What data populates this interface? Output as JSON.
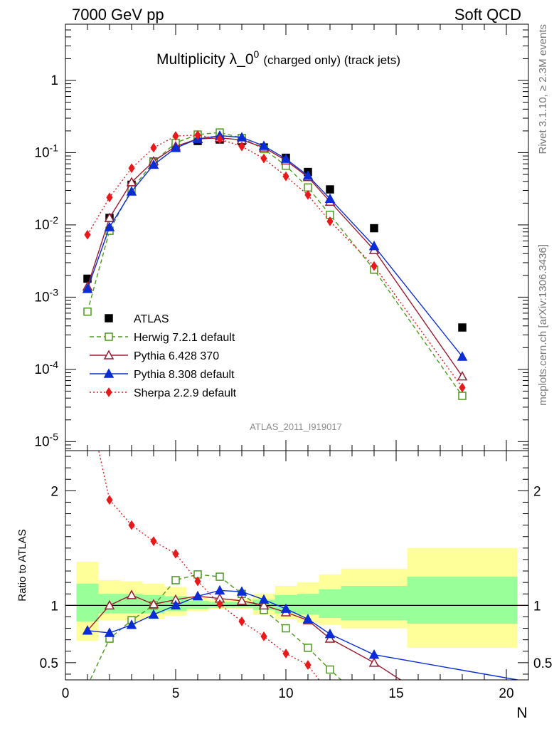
{
  "header": {
    "left": "7000 GeV pp",
    "right": "Soft QCD"
  },
  "side_labels": {
    "top": "Rivet 3.1.10, ≥ 2.3M events",
    "bottom": "mcplots.cern.ch [arXiv:1306.3436]"
  },
  "chart_data": [
    {
      "type": "scatter",
      "title": "Multiplicity λ_0^0 (charged only) (track jets)",
      "title_main": "Multiplicity λ_0",
      "title_sup": "0",
      "title_sub": "(charged only) (track jets)",
      "watermark": "ATLAS_2011_I919017",
      "xlim": [
        0,
        21
      ],
      "ylim": [
        7.5e-06,
        6
      ],
      "yscale": "log",
      "y_ticks": [
        "10^-5",
        "10^-4",
        "10^-3",
        "10^-2",
        "10^-1",
        "1"
      ],
      "legend_position": "lower-left",
      "series": [
        {
          "name": "ATLAS",
          "color": "#000000",
          "marker": "square-filled",
          "line": "none",
          "x": [
            1,
            2,
            3,
            4,
            5,
            6,
            7,
            8,
            9,
            10,
            11,
            12,
            14,
            18
          ],
          "y": [
            0.0018,
            0.0125,
            0.036,
            0.075,
            0.117,
            0.145,
            0.152,
            0.145,
            0.118,
            0.085,
            0.054,
            0.031,
            0.009,
            0.00038
          ]
        },
        {
          "name": "Herwig 7.2.1 default",
          "color": "#4d9a1f",
          "marker": "square-open",
          "line": "dashed",
          "x": [
            1,
            2,
            3,
            4,
            5,
            6,
            7,
            8,
            9,
            10,
            11,
            12,
            14,
            18
          ],
          "y": [
            0.00063,
            0.0083,
            0.031,
            0.074,
            0.137,
            0.178,
            0.19,
            0.16,
            0.112,
            0.066,
            0.033,
            0.0138,
            0.0024,
            4.3e-05
          ]
        },
        {
          "name": "Pythia 6.428 370",
          "color": "#9b1b30",
          "marker": "triangle-open",
          "line": "solid",
          "x": [
            1,
            2,
            3,
            4,
            5,
            6,
            7,
            8,
            9,
            10,
            11,
            12,
            14,
            18
          ],
          "y": [
            0.0014,
            0.0125,
            0.039,
            0.076,
            0.122,
            0.155,
            0.16,
            0.15,
            0.118,
            0.078,
            0.046,
            0.021,
            0.0045,
            8e-05
          ]
        },
        {
          "name": "Pythia 8.308 default",
          "color": "#0a2cd6",
          "marker": "triangle-filled",
          "line": "solid",
          "x": [
            1,
            2,
            3,
            4,
            5,
            6,
            7,
            8,
            9,
            10,
            11,
            12,
            14,
            18
          ],
          "y": [
            0.0013,
            0.0093,
            0.029,
            0.068,
            0.116,
            0.155,
            0.172,
            0.163,
            0.124,
            0.082,
            0.048,
            0.023,
            0.0051,
            0.00015
          ]
        },
        {
          "name": "Sherpa 2.2.9 default",
          "color": "#e8191b",
          "marker": "diamond-filled",
          "line": "dotted",
          "x": [
            1,
            2,
            3,
            4,
            5,
            6,
            7,
            8,
            9,
            10,
            11,
            12,
            14,
            18
          ],
          "y": [
            0.0073,
            0.024,
            0.061,
            0.117,
            0.17,
            0.175,
            0.154,
            0.122,
            0.083,
            0.047,
            0.026,
            0.0112,
            0.0027,
            5.6e-05
          ]
        }
      ]
    },
    {
      "type": "line",
      "ylabel": "Ratio to ATLAS",
      "xlabel": "N",
      "xlim": [
        0,
        21
      ],
      "ylim": [
        0.35,
        2.35
      ],
      "x_ticks": [
        "0",
        "5",
        "10",
        "15",
        "20"
      ],
      "y_ticks": [
        "0.5",
        "1",
        "2"
      ],
      "reference_line": 1,
      "bands": {
        "x_edges": [
          0.5,
          1.5,
          2.5,
          3.5,
          4.5,
          5.5,
          6.5,
          7.5,
          8.5,
          9.5,
          10.5,
          11.5,
          12.5,
          15.5,
          20.5
        ],
        "yellow_lo": [
          0.69,
          0.87,
          0.87,
          0.88,
          0.91,
          0.95,
          0.97,
          0.97,
          0.92,
          0.88,
          0.85,
          0.83,
          0.8,
          0.63
        ],
        "yellow_hi": [
          1.38,
          1.22,
          1.21,
          1.19,
          1.16,
          1.08,
          1.05,
          1.06,
          1.1,
          1.17,
          1.2,
          1.27,
          1.32,
          1.5
        ],
        "green_lo": [
          0.86,
          0.93,
          0.93,
          0.93,
          0.95,
          0.97,
          0.98,
          0.98,
          0.96,
          0.93,
          0.92,
          0.89,
          0.87,
          0.84
        ],
        "green_hi": [
          1.19,
          1.1,
          1.1,
          1.09,
          1.08,
          1.04,
          1.03,
          1.03,
          1.05,
          1.09,
          1.1,
          1.14,
          1.17,
          1.25
        ],
        "yellow_color": "#ffff99",
        "green_color": "#99ff99"
      },
      "series": [
        {
          "name": "Herwig 7.2.1 default",
          "color": "#4d9a1f",
          "marker": "square-open",
          "line": "dashed",
          "x": [
            1,
            2,
            3,
            4,
            5,
            6,
            7,
            8,
            9,
            10,
            11,
            12,
            12.5
          ],
          "y": [
            0.3,
            0.71,
            0.87,
            1.0,
            1.22,
            1.27,
            1.25,
            1.1,
            0.96,
            0.8,
            0.63,
            0.44,
            0.35
          ]
        },
        {
          "name": "Pythia 6.428 370",
          "color": "#9b1b30",
          "marker": "triangle-open",
          "line": "solid",
          "x": [
            1,
            2,
            3,
            4,
            5,
            6,
            7,
            8,
            9,
            10,
            11,
            12,
            14,
            15.2
          ],
          "y": [
            0.78,
            1.0,
            1.09,
            1.01,
            1.05,
            1.08,
            1.06,
            1.04,
            1.0,
            0.94,
            0.87,
            0.71,
            0.5,
            0.35
          ]
        },
        {
          "name": "Pythia 8.308 default",
          "color": "#0a2cd6",
          "marker": "triangle-filled",
          "line": "solid",
          "x": [
            1,
            2,
            3,
            4,
            5,
            6,
            7,
            8,
            9,
            10,
            11,
            12,
            14,
            20.5
          ],
          "y": [
            0.78,
            0.76,
            0.83,
            0.92,
            1.0,
            1.08,
            1.13,
            1.12,
            1.05,
            0.97,
            0.88,
            0.75,
            0.57,
            0.35
          ]
        },
        {
          "name": "Sherpa 2.2.9 default",
          "color": "#e8191b",
          "marker": "diamond-filled",
          "line": "dotted",
          "x": [
            1,
            2,
            3,
            4,
            5,
            6,
            7,
            8,
            9,
            10,
            11,
            11.5
          ],
          "y": [
            2.8,
            1.92,
            1.7,
            1.56,
            1.45,
            1.21,
            1.01,
            0.86,
            0.73,
            0.58,
            0.48,
            0.35
          ]
        }
      ]
    }
  ]
}
